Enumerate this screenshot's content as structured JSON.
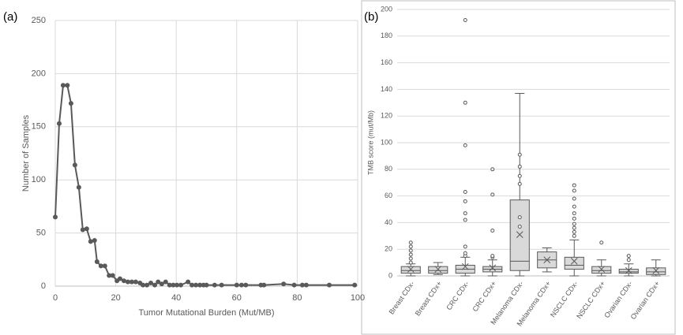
{
  "chart_data": [
    {
      "type": "line",
      "panel_label": "(a)",
      "xlabel": "Tumor Mutational Burden (Mut/MB)",
      "ylabel": "Number of Samples",
      "x": [
        0,
        1.3,
        2.6,
        4,
        5.2,
        6.5,
        7.8,
        9.1,
        10.4,
        11.7,
        13,
        13.8,
        15.1,
        16.4,
        17.8,
        19,
        20.4,
        21.4,
        22.7,
        24,
        25.3,
        26.6,
        28,
        29,
        30.3,
        31.6,
        32.9,
        34,
        35.2,
        36.5,
        37.8,
        39,
        40.2,
        41.5,
        43.9,
        45.2,
        46.5,
        47.8,
        49,
        50,
        52.7,
        55,
        60,
        61.6,
        63,
        68,
        69,
        75.5,
        79,
        81.7,
        83,
        90.6,
        99
      ],
      "values": [
        65,
        153,
        189,
        189,
        172,
        114,
        93,
        53,
        54,
        42,
        43,
        23,
        19,
        19,
        10,
        10,
        5,
        7,
        5,
        4,
        4,
        4,
        3,
        1,
        1,
        3,
        1,
        4,
        2,
        4,
        1,
        1,
        1,
        1,
        4,
        1,
        1,
        1,
        1,
        1,
        1,
        1,
        1,
        1,
        1,
        1,
        1,
        2,
        1,
        1,
        1,
        1,
        1
      ],
      "color": "#595959",
      "xlim": [
        0,
        100
      ],
      "xticks": [
        0,
        20,
        40,
        60,
        80,
        100
      ],
      "ylim": [
        0,
        250
      ],
      "yticks": [
        0,
        50,
        100,
        150,
        200,
        250
      ],
      "grid": true
    },
    {
      "type": "box",
      "panel_label": "(b)",
      "ylabel": "TMB score (mut/Mb)",
      "categories": [
        "Breast CDx-",
        "Breast CDx+",
        "CRC CDx-",
        "CRC CDx+",
        "Melanoma CDx-",
        "Melanoma CDx+",
        "NSCLC CDx-",
        "NSCLC CDx+",
        "Ovarian CDx-",
        "Ovarian CDx+"
      ],
      "whisker_low": [
        0,
        1,
        0,
        0,
        0,
        3,
        0,
        0,
        0,
        0
      ],
      "q1": [
        2,
        2,
        2,
        3,
        4,
        6,
        5,
        2,
        2,
        1
      ],
      "median": [
        4,
        4,
        5,
        5,
        11,
        12,
        8,
        4,
        3,
        3
      ],
      "q3": [
        7,
        7,
        8,
        7,
        57,
        18,
        14,
        7,
        5,
        6
      ],
      "whisker_high": [
        9,
        10,
        14,
        12,
        137,
        21,
        27,
        12,
        9,
        12
      ],
      "mean": [
        5,
        5,
        7,
        6,
        31,
        12,
        11,
        5,
        4,
        4
      ],
      "outliers": [
        [
          10,
          13,
          16,
          19,
          22,
          25
        ],
        [],
        [
          15,
          17,
          22,
          42,
          47,
          56,
          63,
          98,
          130,
          192
        ],
        [
          14,
          15,
          34,
          61,
          80
        ],
        [
          37,
          44,
          69,
          75,
          82,
          91
        ],
        [],
        [
          30,
          33,
          36,
          39,
          43,
          47,
          52,
          58,
          64,
          68
        ],
        [
          25
        ],
        [
          12,
          15
        ],
        []
      ],
      "color": "#d9d9d9",
      "ylim": [
        0,
        200
      ],
      "yticks": [
        0,
        20,
        40,
        60,
        80,
        100,
        120,
        140,
        160,
        180,
        200
      ],
      "grid": true
    }
  ]
}
